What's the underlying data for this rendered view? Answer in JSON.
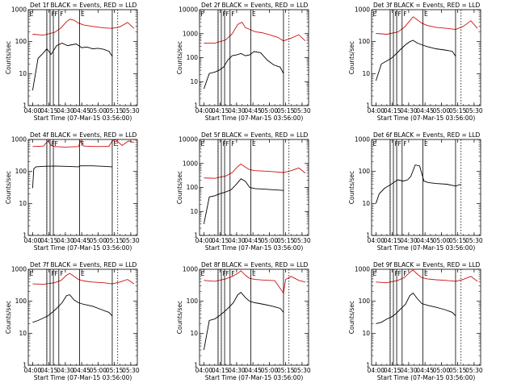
{
  "chart_data": [
    {
      "type": "line",
      "title": "Det 1f BLACK = Events, RED = LLD",
      "xlabel": "Start Time (07-Mar-15 03:56:00)",
      "ylabel": "Counts/sec",
      "xlim": [
        "03:56",
        "05:36"
      ],
      "ylim": [
        1,
        1000
      ],
      "yscale": "log",
      "x_ticks": [
        "04:00",
        "04:15",
        "04:30",
        "04:45",
        "05:00",
        "05:15",
        "05:30"
      ],
      "y_ticks": [
        "1",
        "10",
        "100",
        "1000"
      ],
      "solid_markers": [
        "04:13",
        "04:16",
        "04:19",
        "04:24",
        "04:43",
        "05:13"
      ],
      "dotted_markers": [
        "04:13",
        "05:18"
      ],
      "flags": [
        "E",
        "F",
        "F",
        "F",
        "E"
      ],
      "series": [
        {
          "color": "#000000",
          "x": [
            "04:00",
            "04:05",
            "04:10",
            "04:13",
            "04:17",
            "04:22",
            "04:27",
            "04:32",
            "04:36",
            "04:40",
            "04:45",
            "04:50",
            "04:55",
            "05:00",
            "05:05",
            "05:10",
            "05:13"
          ],
          "y": [
            3,
            30,
            45,
            60,
            40,
            75,
            90,
            75,
            80,
            85,
            65,
            68,
            60,
            62,
            58,
            50,
            35
          ]
        },
        {
          "color": "#d01010",
          "x": [
            "04:00",
            "04:10",
            "04:20",
            "04:26",
            "04:31",
            "04:34",
            "04:38",
            "04:42",
            "04:47",
            "04:55",
            "05:05",
            "05:13",
            "05:20",
            "05:27",
            "05:33"
          ],
          "y": [
            170,
            160,
            195,
            270,
            420,
            500,
            470,
            380,
            330,
            300,
            270,
            260,
            290,
            400,
            260
          ]
        }
      ]
    },
    {
      "type": "line",
      "title": "Det 2f BLACK = Events, RED = LLD",
      "xlabel": "Start Time (07-Mar-15 03:56:00)",
      "ylabel": "Counts/sec",
      "xlim": [
        "03:56",
        "05:36"
      ],
      "ylim": [
        1,
        10000
      ],
      "yscale": "log",
      "x_ticks": [
        "04:00",
        "04:15",
        "04:30",
        "04:45",
        "05:00",
        "05:15",
        "05:30"
      ],
      "y_ticks": [
        "1",
        "10",
        "100",
        "1000",
        "10000"
      ],
      "solid_markers": [
        "04:13",
        "04:16",
        "04:19",
        "04:24",
        "04:43",
        "05:13"
      ],
      "dotted_markers": [
        "04:13",
        "05:18"
      ],
      "flags": [
        "F",
        "F",
        "F",
        "F",
        "E"
      ],
      "series": [
        {
          "color": "#000000",
          "x": [
            "04:00",
            "04:05",
            "04:10",
            "04:14",
            "04:18",
            "04:22",
            "04:26",
            "04:30",
            "04:34",
            "04:38",
            "04:42",
            "04:46",
            "04:52",
            "04:58",
            "05:04",
            "05:10",
            "05:13"
          ],
          "y": [
            5,
            22,
            25,
            30,
            40,
            80,
            120,
            130,
            150,
            120,
            130,
            180,
            160,
            80,
            50,
            40,
            22
          ]
        },
        {
          "color": "#d01010",
          "x": [
            "04:00",
            "04:10",
            "04:20",
            "04:26",
            "04:31",
            "04:35",
            "04:38",
            "04:42",
            "04:47",
            "04:53",
            "05:00",
            "05:08",
            "05:13",
            "05:20",
            "05:27",
            "05:33"
          ],
          "y": [
            400,
            400,
            550,
            1000,
            2400,
            3000,
            1800,
            1500,
            1200,
            1100,
            900,
            700,
            500,
            650,
            900,
            500
          ]
        }
      ]
    },
    {
      "type": "line",
      "title": "Det 3f BLACK = Events, RED = LLD",
      "xlabel": "Start Time (07-Mar-15 03:56:00)",
      "ylabel": "Counts/sec",
      "xlim": [
        "03:56",
        "05:36"
      ],
      "ylim": [
        1,
        1000
      ],
      "yscale": "log",
      "x_ticks": [
        "04:00",
        "04:15",
        "04:30",
        "04:45",
        "05:00",
        "05:15",
        "05:30"
      ],
      "y_ticks": [
        "1",
        "10",
        "100",
        "1000"
      ],
      "solid_markers": [
        "04:13",
        "04:16",
        "04:19",
        "04:24",
        "04:43",
        "05:13"
      ],
      "dotted_markers": [
        "04:13",
        "05:18"
      ],
      "flags": [
        "E",
        "F",
        "F",
        "F",
        "E"
      ],
      "series": [
        {
          "color": "#000000",
          "x": [
            "04:00",
            "04:05",
            "04:10",
            "04:14",
            "04:18",
            "04:22",
            "04:27",
            "04:31",
            "04:34",
            "04:38",
            "04:42",
            "04:47",
            "04:55",
            "05:03",
            "05:10",
            "05:13"
          ],
          "y": [
            6,
            20,
            25,
            30,
            40,
            55,
            80,
            100,
            110,
            90,
            80,
            70,
            60,
            55,
            50,
            35
          ]
        },
        {
          "color": "#d01010",
          "x": [
            "04:00",
            "04:10",
            "04:20",
            "04:26",
            "04:31",
            "04:34",
            "04:38",
            "04:42",
            "04:47",
            "04:55",
            "05:05",
            "05:13",
            "05:20",
            "05:27",
            "05:33"
          ],
          "y": [
            180,
            170,
            200,
            280,
            450,
            600,
            480,
            380,
            320,
            280,
            260,
            240,
            300,
            450,
            260
          ]
        }
      ]
    },
    {
      "type": "line",
      "title": "Det 4f BLACK = Events, RED = LLD",
      "xlabel": "Start Time (07-Mar-15 03:56:00)",
      "ylabel": "Counts/sec",
      "xlim": [
        "03:56",
        "05:36"
      ],
      "ylim": [
        1,
        1000
      ],
      "yscale": "log",
      "x_ticks": [
        "04:00",
        "04:15",
        "04:30",
        "04:45",
        "05:00",
        "05:15",
        "05:30"
      ],
      "y_ticks": [
        "1",
        "10",
        "100",
        "1000"
      ],
      "solid_markers": [
        "04:13",
        "04:16",
        "04:19",
        "04:43",
        "05:13"
      ],
      "dotted_markers": [
        "04:13",
        "05:18"
      ],
      "flags": [
        "F",
        "F",
        "F",
        "E"
      ],
      "series": [
        {
          "color": "#000000",
          "x": [
            "04:00",
            "04:01",
            "04:03",
            "04:10",
            "04:20",
            "04:30",
            "04:42",
            "04:44",
            "04:55",
            "05:05",
            "05:13"
          ],
          "y": [
            30,
            120,
            140,
            145,
            148,
            145,
            140,
            150,
            150,
            145,
            140
          ]
        },
        {
          "color": "#d01010",
          "x": [
            "04:00",
            "04:10",
            "04:14",
            "04:17",
            "04:20",
            "04:30",
            "04:42",
            "04:44",
            "04:47",
            "05:00",
            "05:10",
            "05:13",
            "05:16",
            "05:22",
            "05:28",
            "05:33"
          ],
          "y": [
            600,
            620,
            900,
            650,
            600,
            580,
            600,
            900,
            620,
            600,
            610,
            900,
            1000,
            650,
            900,
            800
          ]
        }
      ]
    },
    {
      "type": "line",
      "title": "Det 5f BLACK = Events, RED = LLD",
      "xlabel": "Start Time (07-Mar-15 03:56:00)",
      "ylabel": "Counts/sec",
      "xlim": [
        "03:56",
        "05:36"
      ],
      "ylim": [
        1,
        10000
      ],
      "yscale": "log",
      "x_ticks": [
        "04:00",
        "04:15",
        "04:30",
        "04:45",
        "05:00",
        "05:15",
        "05:30"
      ],
      "y_ticks": [
        "1",
        "10",
        "100",
        "1000",
        "10000"
      ],
      "solid_markers": [
        "04:13",
        "04:16",
        "04:19",
        "04:24",
        "04:43",
        "05:13"
      ],
      "dotted_markers": [
        "04:13",
        "05:18"
      ],
      "flags": [
        "E",
        "F",
        "F",
        "F",
        "E"
      ],
      "series": [
        {
          "color": "#000000",
          "x": [
            "04:00",
            "04:05",
            "04:10",
            "04:15",
            "04:20",
            "04:25",
            "04:30",
            "04:34",
            "04:38",
            "04:42",
            "04:47",
            "04:55",
            "05:05",
            "05:13"
          ],
          "y": [
            3,
            40,
            45,
            55,
            65,
            80,
            140,
            230,
            180,
            100,
            90,
            85,
            80,
            75
          ]
        },
        {
          "color": "#d01010",
          "x": [
            "04:00",
            "04:10",
            "04:20",
            "04:26",
            "04:31",
            "04:34",
            "04:38",
            "04:42",
            "04:47",
            "04:55",
            "05:05",
            "05:13",
            "05:20",
            "05:27",
            "05:33"
          ],
          "y": [
            250,
            240,
            300,
            420,
            750,
            950,
            700,
            550,
            500,
            480,
            450,
            420,
            500,
            650,
            400
          ]
        }
      ]
    },
    {
      "type": "line",
      "title": "Det 6f BLACK = Events, RED = LLD",
      "xlabel": "Start Time (07-Mar-15 03:56:00)",
      "ylabel": "Counts/sec",
      "xlim": [
        "03:56",
        "05:36"
      ],
      "ylim": [
        1,
        1000
      ],
      "yscale": "log",
      "x_ticks": [
        "04:00",
        "04:15",
        "04:30",
        "04:45",
        "05:00",
        "05:15",
        "05:30"
      ],
      "y_ticks": [
        "1",
        "10",
        "100",
        "1000"
      ],
      "solid_markers": [
        "04:13",
        "04:16",
        "04:19",
        "04:24",
        "04:43",
        "05:13"
      ],
      "dotted_markers": [
        "04:13",
        "05:18"
      ],
      "flags": [
        "E",
        "F",
        "F",
        "F",
        "E"
      ],
      "series": [
        {
          "color": "#000000",
          "x": [
            "04:00",
            "04:03",
            "04:08",
            "04:14",
            "04:20",
            "04:25",
            "04:29",
            "04:32",
            "04:36",
            "04:40",
            "04:44",
            "04:48",
            "04:55",
            "05:05",
            "05:13",
            "05:18"
          ],
          "y": [
            10,
            20,
            30,
            40,
            55,
            50,
            55,
            70,
            160,
            150,
            50,
            45,
            42,
            40,
            35,
            40
          ]
        }
      ]
    },
    {
      "type": "line",
      "title": "Det 7f BLACK = Events, RED = LLD",
      "xlabel": "Start Time (07-Mar-15 03:56:00)",
      "ylabel": "Counts/sec",
      "xlim": [
        "03:56",
        "05:36"
      ],
      "ylim": [
        1,
        1000
      ],
      "yscale": "log",
      "x_ticks": [
        "04:00",
        "04:15",
        "04:30",
        "04:45",
        "05:00",
        "05:15",
        "05:30"
      ],
      "y_ticks": [
        "1",
        "10",
        "100",
        "1000"
      ],
      "solid_markers": [
        "04:13",
        "04:16",
        "04:19",
        "04:24",
        "04:43",
        "05:13"
      ],
      "dotted_markers": [
        "04:13",
        "05:18"
      ],
      "flags": [
        "E",
        "F",
        "F",
        "F",
        "E"
      ],
      "series": [
        {
          "color": "#000000",
          "x": [
            "04:00",
            "04:05",
            "04:10",
            "04:14",
            "04:18",
            "04:22",
            "04:27",
            "04:31",
            "04:34",
            "04:38",
            "04:42",
            "04:47",
            "04:55",
            "05:03",
            "05:10",
            "05:13"
          ],
          "y": [
            22,
            25,
            30,
            35,
            45,
            60,
            90,
            150,
            160,
            110,
            90,
            80,
            70,
            55,
            45,
            35
          ]
        },
        {
          "color": "#d01010",
          "x": [
            "04:00",
            "04:10",
            "04:20",
            "04:26",
            "04:31",
            "04:34",
            "04:38",
            "04:42",
            "04:47",
            "04:55",
            "05:05",
            "05:13",
            "05:20",
            "05:27",
            "05:33"
          ],
          "y": [
            350,
            340,
            380,
            450,
            650,
            750,
            600,
            480,
            430,
            400,
            380,
            350,
            400,
            480,
            350
          ]
        }
      ]
    },
    {
      "type": "line",
      "title": "Det 8f BLACK = Events, RED = LLD",
      "xlabel": "Start Time (07-Mar-15 03:56:00)",
      "ylabel": "Counts/sec",
      "xlim": [
        "03:56",
        "05:36"
      ],
      "ylim": [
        1,
        1000
      ],
      "yscale": "log",
      "x_ticks": [
        "04:00",
        "04:15",
        "04:30",
        "04:45",
        "05:00",
        "05:15",
        "05:30"
      ],
      "y_ticks": [
        "1",
        "10",
        "100",
        "1000"
      ],
      "solid_markers": [
        "04:13",
        "04:16",
        "04:19",
        "04:24",
        "04:43",
        "05:13"
      ],
      "dotted_markers": [
        "04:13",
        "05:18"
      ],
      "flags": [
        "E",
        "F",
        "F",
        "F",
        "E"
      ],
      "series": [
        {
          "color": "#000000",
          "x": [
            "04:00",
            "04:05",
            "04:10",
            "04:14",
            "04:18",
            "04:22",
            "04:27",
            "04:31",
            "04:34",
            "04:38",
            "04:42",
            "04:47",
            "04:55",
            "05:03",
            "05:10",
            "05:13"
          ],
          "y": [
            3,
            25,
            28,
            35,
            45,
            60,
            90,
            160,
            190,
            130,
            100,
            90,
            80,
            70,
            60,
            45
          ]
        },
        {
          "color": "#d01010",
          "x": [
            "04:00",
            "04:10",
            "04:20",
            "04:26",
            "04:31",
            "04:34",
            "04:38",
            "04:42",
            "04:47",
            "04:55",
            "05:05",
            "05:13",
            "05:15",
            "05:20",
            "05:27",
            "05:33"
          ],
          "y": [
            450,
            420,
            500,
            600,
            750,
            900,
            650,
            520,
            480,
            460,
            440,
            180,
            480,
            600,
            450,
            400
          ]
        }
      ]
    },
    {
      "type": "line",
      "title": "Det 9f BLACK = Events, RED = LLD",
      "xlabel": "Start Time (07-Mar-15 03:56:00)",
      "ylabel": "Counts/sec",
      "xlim": [
        "03:56",
        "05:36"
      ],
      "ylim": [
        1,
        1000
      ],
      "yscale": "log",
      "x_ticks": [
        "04:00",
        "04:15",
        "04:30",
        "04:45",
        "05:00",
        "05:15",
        "05:30"
      ],
      "y_ticks": [
        "1",
        "10",
        "100",
        "1000"
      ],
      "solid_markers": [
        "04:13",
        "04:16",
        "04:19",
        "04:24",
        "04:43",
        "05:13"
      ],
      "dotted_markers": [
        "04:13",
        "05:18"
      ],
      "flags": [
        "E",
        "F",
        "F",
        "F",
        "E"
      ],
      "series": [
        {
          "color": "#000000",
          "x": [
            "04:00",
            "04:05",
            "04:10",
            "04:14",
            "04:18",
            "04:22",
            "04:27",
            "04:31",
            "04:34",
            "04:38",
            "04:42",
            "04:47",
            "04:55",
            "05:03",
            "05:10",
            "05:13"
          ],
          "y": [
            20,
            22,
            28,
            32,
            40,
            55,
            80,
            150,
            180,
            120,
            85,
            75,
            65,
            55,
            45,
            35
          ]
        },
        {
          "color": "#d01010",
          "x": [
            "04:00",
            "04:10",
            "04:20",
            "04:26",
            "04:31",
            "04:34",
            "04:38",
            "04:42",
            "04:47",
            "04:55",
            "05:05",
            "05:13",
            "05:20",
            "05:27",
            "05:33"
          ],
          "y": [
            400,
            380,
            450,
            550,
            800,
            950,
            700,
            550,
            500,
            470,
            450,
            420,
            480,
            600,
            420
          ]
        }
      ]
    }
  ]
}
